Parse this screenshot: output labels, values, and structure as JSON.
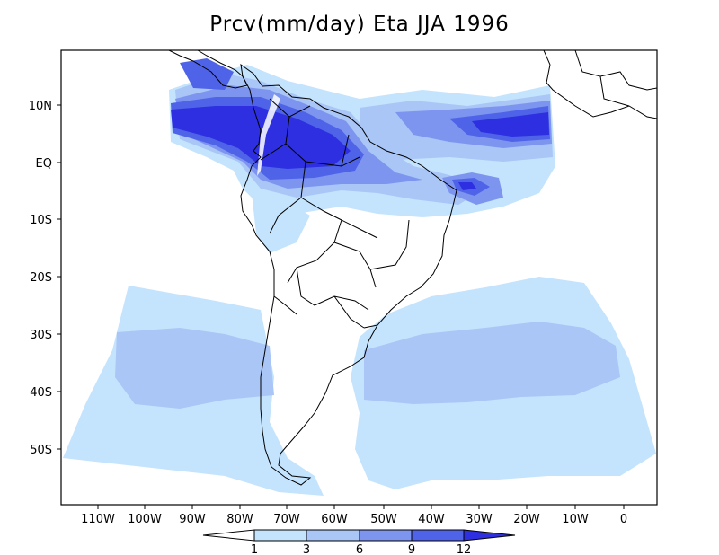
{
  "title": "Prcv(mm/day) Eta JJA 1996",
  "lat_labels": [
    "10N",
    "EQ",
    "10S",
    "20S",
    "30S",
    "40S",
    "50S"
  ],
  "lon_labels": [
    "110W",
    "100W",
    "90W",
    "80W",
    "70W",
    "60W",
    "50W",
    "40W",
    "30W",
    "20W",
    "10W",
    "0"
  ],
  "colorbar": {
    "labels": [
      "1",
      "3",
      "6",
      "9",
      "12"
    ],
    "colors": [
      "#ffffff",
      "#c4e3fd",
      "#a9c6f7",
      "#7d95ef",
      "#4f63e8",
      "#2d2fe0"
    ]
  },
  "fill_colors": {
    "level1": "#c4e3fd",
    "level2": "#a9c6f7",
    "level3": "#7d95ef",
    "level4": "#4f63e8",
    "level5": "#2d2fe0"
  }
}
